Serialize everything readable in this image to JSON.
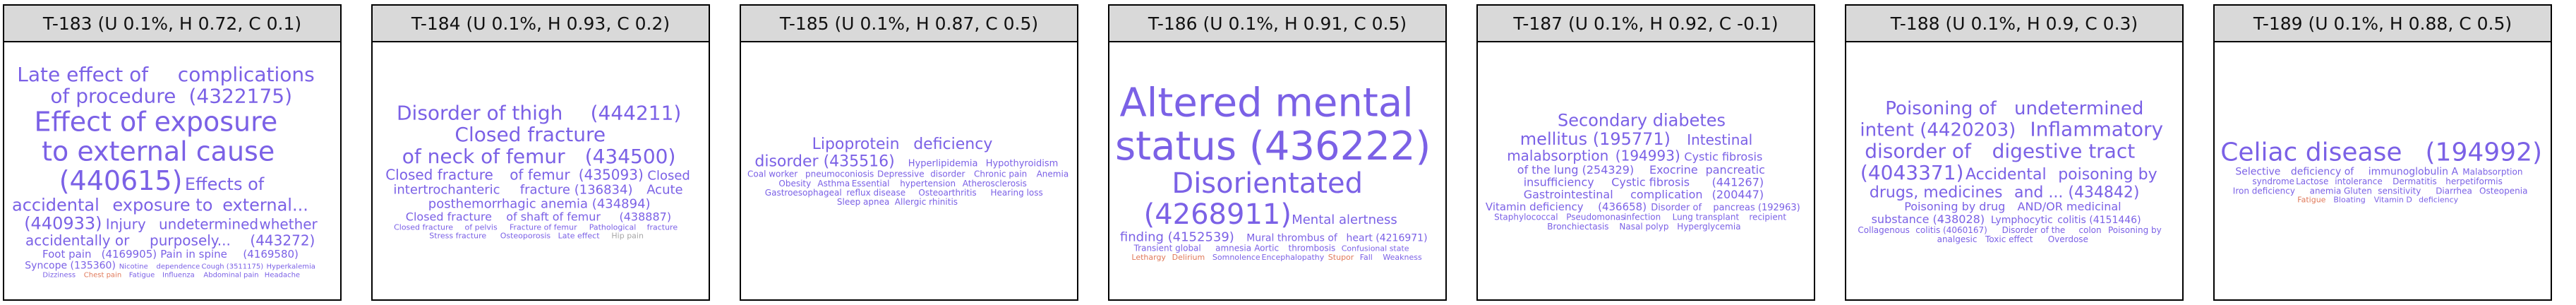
{
  "colors": {
    "purple": "#7b61e6",
    "dark_purple": "#5a3fd0",
    "orange": "#e0795a",
    "grey": "#a6a6a6",
    "violet_grey": "#9b8fd9"
  },
  "chart_data": [
    {
      "type": "wordcloud",
      "title": "T-183 (U 0.1%, H 0.72, C 0.1)",
      "words": [
        {
          "text": "Late effect of",
          "size": 28,
          "color": "purple"
        },
        {
          "text": "complications",
          "size": 28,
          "color": "purple"
        },
        {
          "text": "of procedure",
          "size": 28,
          "color": "purple"
        },
        {
          "text": "(4322175)",
          "size": 28,
          "color": "purple"
        },
        {
          "text": "Effect of exposure",
          "size": 38,
          "color": "purple"
        },
        {
          "text": "to external cause",
          "size": 38,
          "color": "purple"
        },
        {
          "text": "(440615)",
          "size": 38,
          "color": "purple"
        },
        {
          "text": "Effects of",
          "size": 24,
          "color": "purple"
        },
        {
          "text": "accidental",
          "size": 24,
          "color": "purple"
        },
        {
          "text": "exposure to",
          "size": 24,
          "color": "purple"
        },
        {
          "text": "external...",
          "size": 24,
          "color": "purple"
        },
        {
          "text": "(440933)",
          "size": 24,
          "color": "purple"
        },
        {
          "text": "Injury",
          "size": 20,
          "color": "purple"
        },
        {
          "text": "undetermined",
          "size": 20,
          "color": "purple"
        },
        {
          "text": "whether",
          "size": 20,
          "color": "purple"
        },
        {
          "text": "accidentally or",
          "size": 20,
          "color": "purple"
        },
        {
          "text": "purposely...",
          "size": 20,
          "color": "purple"
        },
        {
          "text": "(443272)",
          "size": 20,
          "color": "purple"
        },
        {
          "text": "Foot pain",
          "size": 15,
          "color": "purple"
        },
        {
          "text": "(4169905)",
          "size": 15,
          "color": "purple"
        },
        {
          "text": "Pain in spine",
          "size": 15,
          "color": "purple"
        },
        {
          "text": "(4169580)",
          "size": 15,
          "color": "purple"
        },
        {
          "text": "Syncope (135360)",
          "size": 14,
          "color": "purple"
        },
        {
          "text": "Nicotine",
          "size": 10,
          "color": "purple"
        },
        {
          "text": "dependence",
          "size": 10,
          "color": "purple"
        },
        {
          "text": "Cough (3511175)",
          "size": 10,
          "color": "purple"
        },
        {
          "text": "Hyperkalemia",
          "size": 10,
          "color": "purple"
        },
        {
          "text": "Dizziness",
          "size": 10,
          "color": "purple"
        },
        {
          "text": "Chest pain",
          "size": 10,
          "color": "orange"
        },
        {
          "text": "Fatigue",
          "size": 10,
          "color": "purple"
        },
        {
          "text": "Influenza",
          "size": 10,
          "color": "purple"
        },
        {
          "text": "Abdominal pain",
          "size": 10,
          "color": "purple"
        },
        {
          "text": "Headache",
          "size": 10,
          "color": "purple"
        }
      ]
    },
    {
      "type": "wordcloud",
      "title": "T-184 (U 0.1%, H 0.93, C 0.2)",
      "words": [
        {
          "text": "Disorder of thigh",
          "size": 28,
          "color": "purple"
        },
        {
          "text": "(444211)",
          "size": 28,
          "color": "purple"
        },
        {
          "text": "Closed fracture",
          "size": 28,
          "color": "purple"
        },
        {
          "text": "of neck of femur",
          "size": 28,
          "color": "purple"
        },
        {
          "text": "(434500)",
          "size": 28,
          "color": "purple"
        },
        {
          "text": "Closed fracture",
          "size": 20,
          "color": "purple"
        },
        {
          "text": "of femur",
          "size": 20,
          "color": "purple"
        },
        {
          "text": "(435093)",
          "size": 20,
          "color": "purple"
        },
        {
          "text": "Closed",
          "size": 18,
          "color": "purple"
        },
        {
          "text": "intertrochanteric",
          "size": 18,
          "color": "purple"
        },
        {
          "text": "fracture (136834)",
          "size": 18,
          "color": "purple"
        },
        {
          "text": "Acute",
          "size": 18,
          "color": "purple"
        },
        {
          "text": "posthemorrhagic",
          "size": 18,
          "color": "purple"
        },
        {
          "text": "anemia (434894)",
          "size": 18,
          "color": "purple"
        },
        {
          "text": "Closed fracture",
          "size": 16,
          "color": "purple"
        },
        {
          "text": "of shaft of femur",
          "size": 16,
          "color": "purple"
        },
        {
          "text": "(438887)",
          "size": 16,
          "color": "purple"
        },
        {
          "text": "Closed fracture",
          "size": 11,
          "color": "purple"
        },
        {
          "text": "of pelvis",
          "size": 11,
          "color": "purple"
        },
        {
          "text": "Fracture of femur",
          "size": 11,
          "color": "purple"
        },
        {
          "text": "Pathological",
          "size": 11,
          "color": "purple"
        },
        {
          "text": "fracture",
          "size": 11,
          "color": "purple"
        },
        {
          "text": "Stress fracture",
          "size": 11,
          "color": "purple"
        },
        {
          "text": "Osteoporosis",
          "size": 11,
          "color": "purple"
        },
        {
          "text": "Late effect",
          "size": 11,
          "color": "purple"
        },
        {
          "text": "Hip pain",
          "size": 11,
          "color": "grey"
        }
      ]
    },
    {
      "type": "wordcloud",
      "title": "T-185 (U 0.1%, H 0.87, C 0.5)",
      "words": [
        {
          "text": "Lipoprotein",
          "size": 22,
          "color": "purple"
        },
        {
          "text": "deficiency",
          "size": 22,
          "color": "purple"
        },
        {
          "text": "disorder (435516)",
          "size": 22,
          "color": "purple"
        },
        {
          "text": "Hyperlipidemia",
          "size": 13,
          "color": "purple"
        },
        {
          "text": "Hypothyroidism",
          "size": 13,
          "color": "purple"
        },
        {
          "text": "Coal worker",
          "size": 12,
          "color": "purple"
        },
        {
          "text": "pneumoconiosis",
          "size": 12,
          "color": "purple"
        },
        {
          "text": "Depressive",
          "size": 12,
          "color": "purple"
        },
        {
          "text": "disorder",
          "size": 12,
          "color": "purple"
        },
        {
          "text": "Chronic pain",
          "size": 12,
          "color": "purple"
        },
        {
          "text": "Anemia",
          "size": 12,
          "color": "purple"
        },
        {
          "text": "Obesity",
          "size": 12,
          "color": "purple"
        },
        {
          "text": "Asthma",
          "size": 12,
          "color": "purple"
        },
        {
          "text": "Essential",
          "size": 12,
          "color": "purple"
        },
        {
          "text": "hypertension",
          "size": 12,
          "color": "purple"
        },
        {
          "text": "Atherosclerosis",
          "size": 12,
          "color": "purple"
        },
        {
          "text": "Gastroesophageal",
          "size": 12,
          "color": "purple"
        },
        {
          "text": "reflux disease",
          "size": 12,
          "color": "purple"
        },
        {
          "text": "Osteoarthritis",
          "size": 12,
          "color": "purple"
        },
        {
          "text": "Hearing loss",
          "size": 12,
          "color": "purple"
        },
        {
          "text": "Sleep apnea",
          "size": 12,
          "color": "purple"
        },
        {
          "text": "Allergic rhinitis",
          "size": 12,
          "color": "purple"
        }
      ]
    },
    {
      "type": "wordcloud",
      "title": "T-186 (U 0.1%, H 0.91, C 0.5)",
      "words": [
        {
          "text": "Altered mental",
          "size": 56,
          "color": "purple"
        },
        {
          "text": "status (436222)",
          "size": 56,
          "color": "purple"
        },
        {
          "text": "Disorientated",
          "size": 40,
          "color": "purple"
        },
        {
          "text": "(4268911)",
          "size": 40,
          "color": "purple"
        },
        {
          "text": "Mental alertness",
          "size": 18,
          "color": "purple"
        },
        {
          "text": "finding (4152539)",
          "size": 18,
          "color": "purple"
        },
        {
          "text": "Mural thrombus of",
          "size": 14,
          "color": "purple"
        },
        {
          "text": "heart (4216971)",
          "size": 14,
          "color": "purple"
        },
        {
          "text": "Transient global",
          "size": 12,
          "color": "purple"
        },
        {
          "text": "amnesia",
          "size": 12,
          "color": "purple"
        },
        {
          "text": "Aortic",
          "size": 12,
          "color": "purple"
        },
        {
          "text": "thrombosis",
          "size": 12,
          "color": "purple"
        },
        {
          "text": "Confusional state",
          "size": 11,
          "color": "purple"
        },
        {
          "text": "Lethargy",
          "size": 11,
          "color": "orange"
        },
        {
          "text": "Delirium",
          "size": 11,
          "color": "orange"
        },
        {
          "text": "Somnolence",
          "size": 11,
          "color": "purple"
        },
        {
          "text": "Encephalopathy",
          "size": 11,
          "color": "purple"
        },
        {
          "text": "Stupor",
          "size": 11,
          "color": "orange"
        },
        {
          "text": "Fall",
          "size": 11,
          "color": "purple"
        },
        {
          "text": "Weakness",
          "size": 11,
          "color": "purple"
        }
      ]
    },
    {
      "type": "wordcloud",
      "title": "T-187 (U 0.1%, H 0.92, C -0.1)",
      "words": [
        {
          "text": "Secondary diabetes",
          "size": 24,
          "color": "purple"
        },
        {
          "text": "mellitus (195771)",
          "size": 24,
          "color": "purple"
        },
        {
          "text": "Intestinal",
          "size": 20,
          "color": "purple"
        },
        {
          "text": "malabsorption",
          "size": 20,
          "color": "purple"
        },
        {
          "text": "(194993)",
          "size": 20,
          "color": "purple"
        },
        {
          "text": "Cystic fibrosis",
          "size": 16,
          "color": "purple"
        },
        {
          "text": "of the lung (254329)",
          "size": 16,
          "color": "purple"
        },
        {
          "text": "Exocrine",
          "size": 16,
          "color": "purple"
        },
        {
          "text": "pancreatic",
          "size": 16,
          "color": "purple"
        },
        {
          "text": "insufficiency",
          "size": 16,
          "color": "purple"
        },
        {
          "text": "Cystic fibrosis",
          "size": 16,
          "color": "purple"
        },
        {
          "text": "(441267)",
          "size": 16,
          "color": "purple"
        },
        {
          "text": "Gastrointestinal",
          "size": 16,
          "color": "purple"
        },
        {
          "text": "complication",
          "size": 16,
          "color": "purple"
        },
        {
          "text": "(200447)",
          "size": 16,
          "color": "purple"
        },
        {
          "text": "Vitamin deficiency",
          "size": 15,
          "color": "purple"
        },
        {
          "text": "(436658)",
          "size": 15,
          "color": "purple"
        },
        {
          "text": "Disorder of",
          "size": 13,
          "color": "purple"
        },
        {
          "text": "pancreas (192963)",
          "size": 13,
          "color": "purple"
        },
        {
          "text": "Staphylococcal",
          "size": 12,
          "color": "purple"
        },
        {
          "text": "Pseudomonas",
          "size": 12,
          "color": "purple"
        },
        {
          "text": "infection",
          "size": 12,
          "color": "purple"
        },
        {
          "text": "Lung transplant",
          "size": 12,
          "color": "purple"
        },
        {
          "text": "recipient",
          "size": 12,
          "color": "purple"
        },
        {
          "text": "Bronchiectasis",
          "size": 12,
          "color": "purple"
        },
        {
          "text": "Nasal polyp",
          "size": 12,
          "color": "purple"
        },
        {
          "text": "Hyperglycemia",
          "size": 12,
          "color": "purple"
        }
      ]
    },
    {
      "type": "wordcloud",
      "title": "T-188 (U 0.1%, H 0.9, C 0.3)",
      "words": [
        {
          "text": "Poisoning of",
          "size": 26,
          "color": "purple"
        },
        {
          "text": "undetermined",
          "size": 26,
          "color": "purple"
        },
        {
          "text": "intent (4420203)",
          "size": 26,
          "color": "purple"
        },
        {
          "text": "Inflammatory",
          "size": 28,
          "color": "purple"
        },
        {
          "text": "disorder of",
          "size": 28,
          "color": "purple"
        },
        {
          "text": "digestive tract",
          "size": 28,
          "color": "purple"
        },
        {
          "text": "(4043371)",
          "size": 28,
          "color": "purple"
        },
        {
          "text": "Accidental",
          "size": 22,
          "color": "purple"
        },
        {
          "text": "poisoning by",
          "size": 22,
          "color": "purple"
        },
        {
          "text": "drugs, medicines",
          "size": 22,
          "color": "purple"
        },
        {
          "text": "and ... (434842)",
          "size": 22,
          "color": "purple"
        },
        {
          "text": "Poisoning by drug",
          "size": 16,
          "color": "purple"
        },
        {
          "text": "AND/OR medicinal",
          "size": 16,
          "color": "purple"
        },
        {
          "text": "substance (438028)",
          "size": 16,
          "color": "purple"
        },
        {
          "text": "Lymphocytic",
          "size": 14,
          "color": "purple"
        },
        {
          "text": "colitis (4151446)",
          "size": 14,
          "color": "purple"
        },
        {
          "text": "Collagenous",
          "size": 12,
          "color": "purple"
        },
        {
          "text": "colitis (4060167)",
          "size": 12,
          "color": "purple"
        },
        {
          "text": "Disorder of the",
          "size": 12,
          "color": "purple"
        },
        {
          "text": "colon",
          "size": 12,
          "color": "purple"
        },
        {
          "text": "Poisoning by",
          "size": 12,
          "color": "purple"
        },
        {
          "text": "analgesic",
          "size": 12,
          "color": "purple"
        },
        {
          "text": "Toxic effect",
          "size": 12,
          "color": "purple"
        },
        {
          "text": "Overdose",
          "size": 12,
          "color": "purple"
        }
      ]
    },
    {
      "type": "wordcloud",
      "title": "T-189 (U 0.1%, H 0.88, C 0.5)",
      "words": [
        {
          "text": "Celiac disease",
          "size": 36,
          "color": "purple"
        },
        {
          "text": "(194992)",
          "size": 36,
          "color": "purple"
        },
        {
          "text": "Selective",
          "size": 14,
          "color": "purple"
        },
        {
          "text": "deficiency of",
          "size": 14,
          "color": "purple"
        },
        {
          "text": "immunoglobulin A",
          "size": 14,
          "color": "purple"
        },
        {
          "text": "Malabsorption",
          "size": 12,
          "color": "purple"
        },
        {
          "text": "syndrome",
          "size": 12,
          "color": "purple"
        },
        {
          "text": "Lactose",
          "size": 12,
          "color": "purple"
        },
        {
          "text": "intolerance",
          "size": 12,
          "color": "purple"
        },
        {
          "text": "Dermatitis",
          "size": 12,
          "color": "purple"
        },
        {
          "text": "herpetiformis",
          "size": 12,
          "color": "purple"
        },
        {
          "text": "Iron deficiency",
          "size": 12,
          "color": "purple"
        },
        {
          "text": "anemia",
          "size": 12,
          "color": "purple"
        },
        {
          "text": "Gluten",
          "size": 12,
          "color": "purple"
        },
        {
          "text": "sensitivity",
          "size": 12,
          "color": "purple"
        },
        {
          "text": "Diarrhea",
          "size": 12,
          "color": "purple"
        },
        {
          "text": "Osteopenia",
          "size": 12,
          "color": "purple"
        },
        {
          "text": "Fatigue",
          "size": 11,
          "color": "orange"
        },
        {
          "text": "Bloating",
          "size": 11,
          "color": "purple"
        },
        {
          "text": "Vitamin D",
          "size": 11,
          "color": "purple"
        },
        {
          "text": "deficiency",
          "size": 11,
          "color": "purple"
        }
      ]
    }
  ]
}
